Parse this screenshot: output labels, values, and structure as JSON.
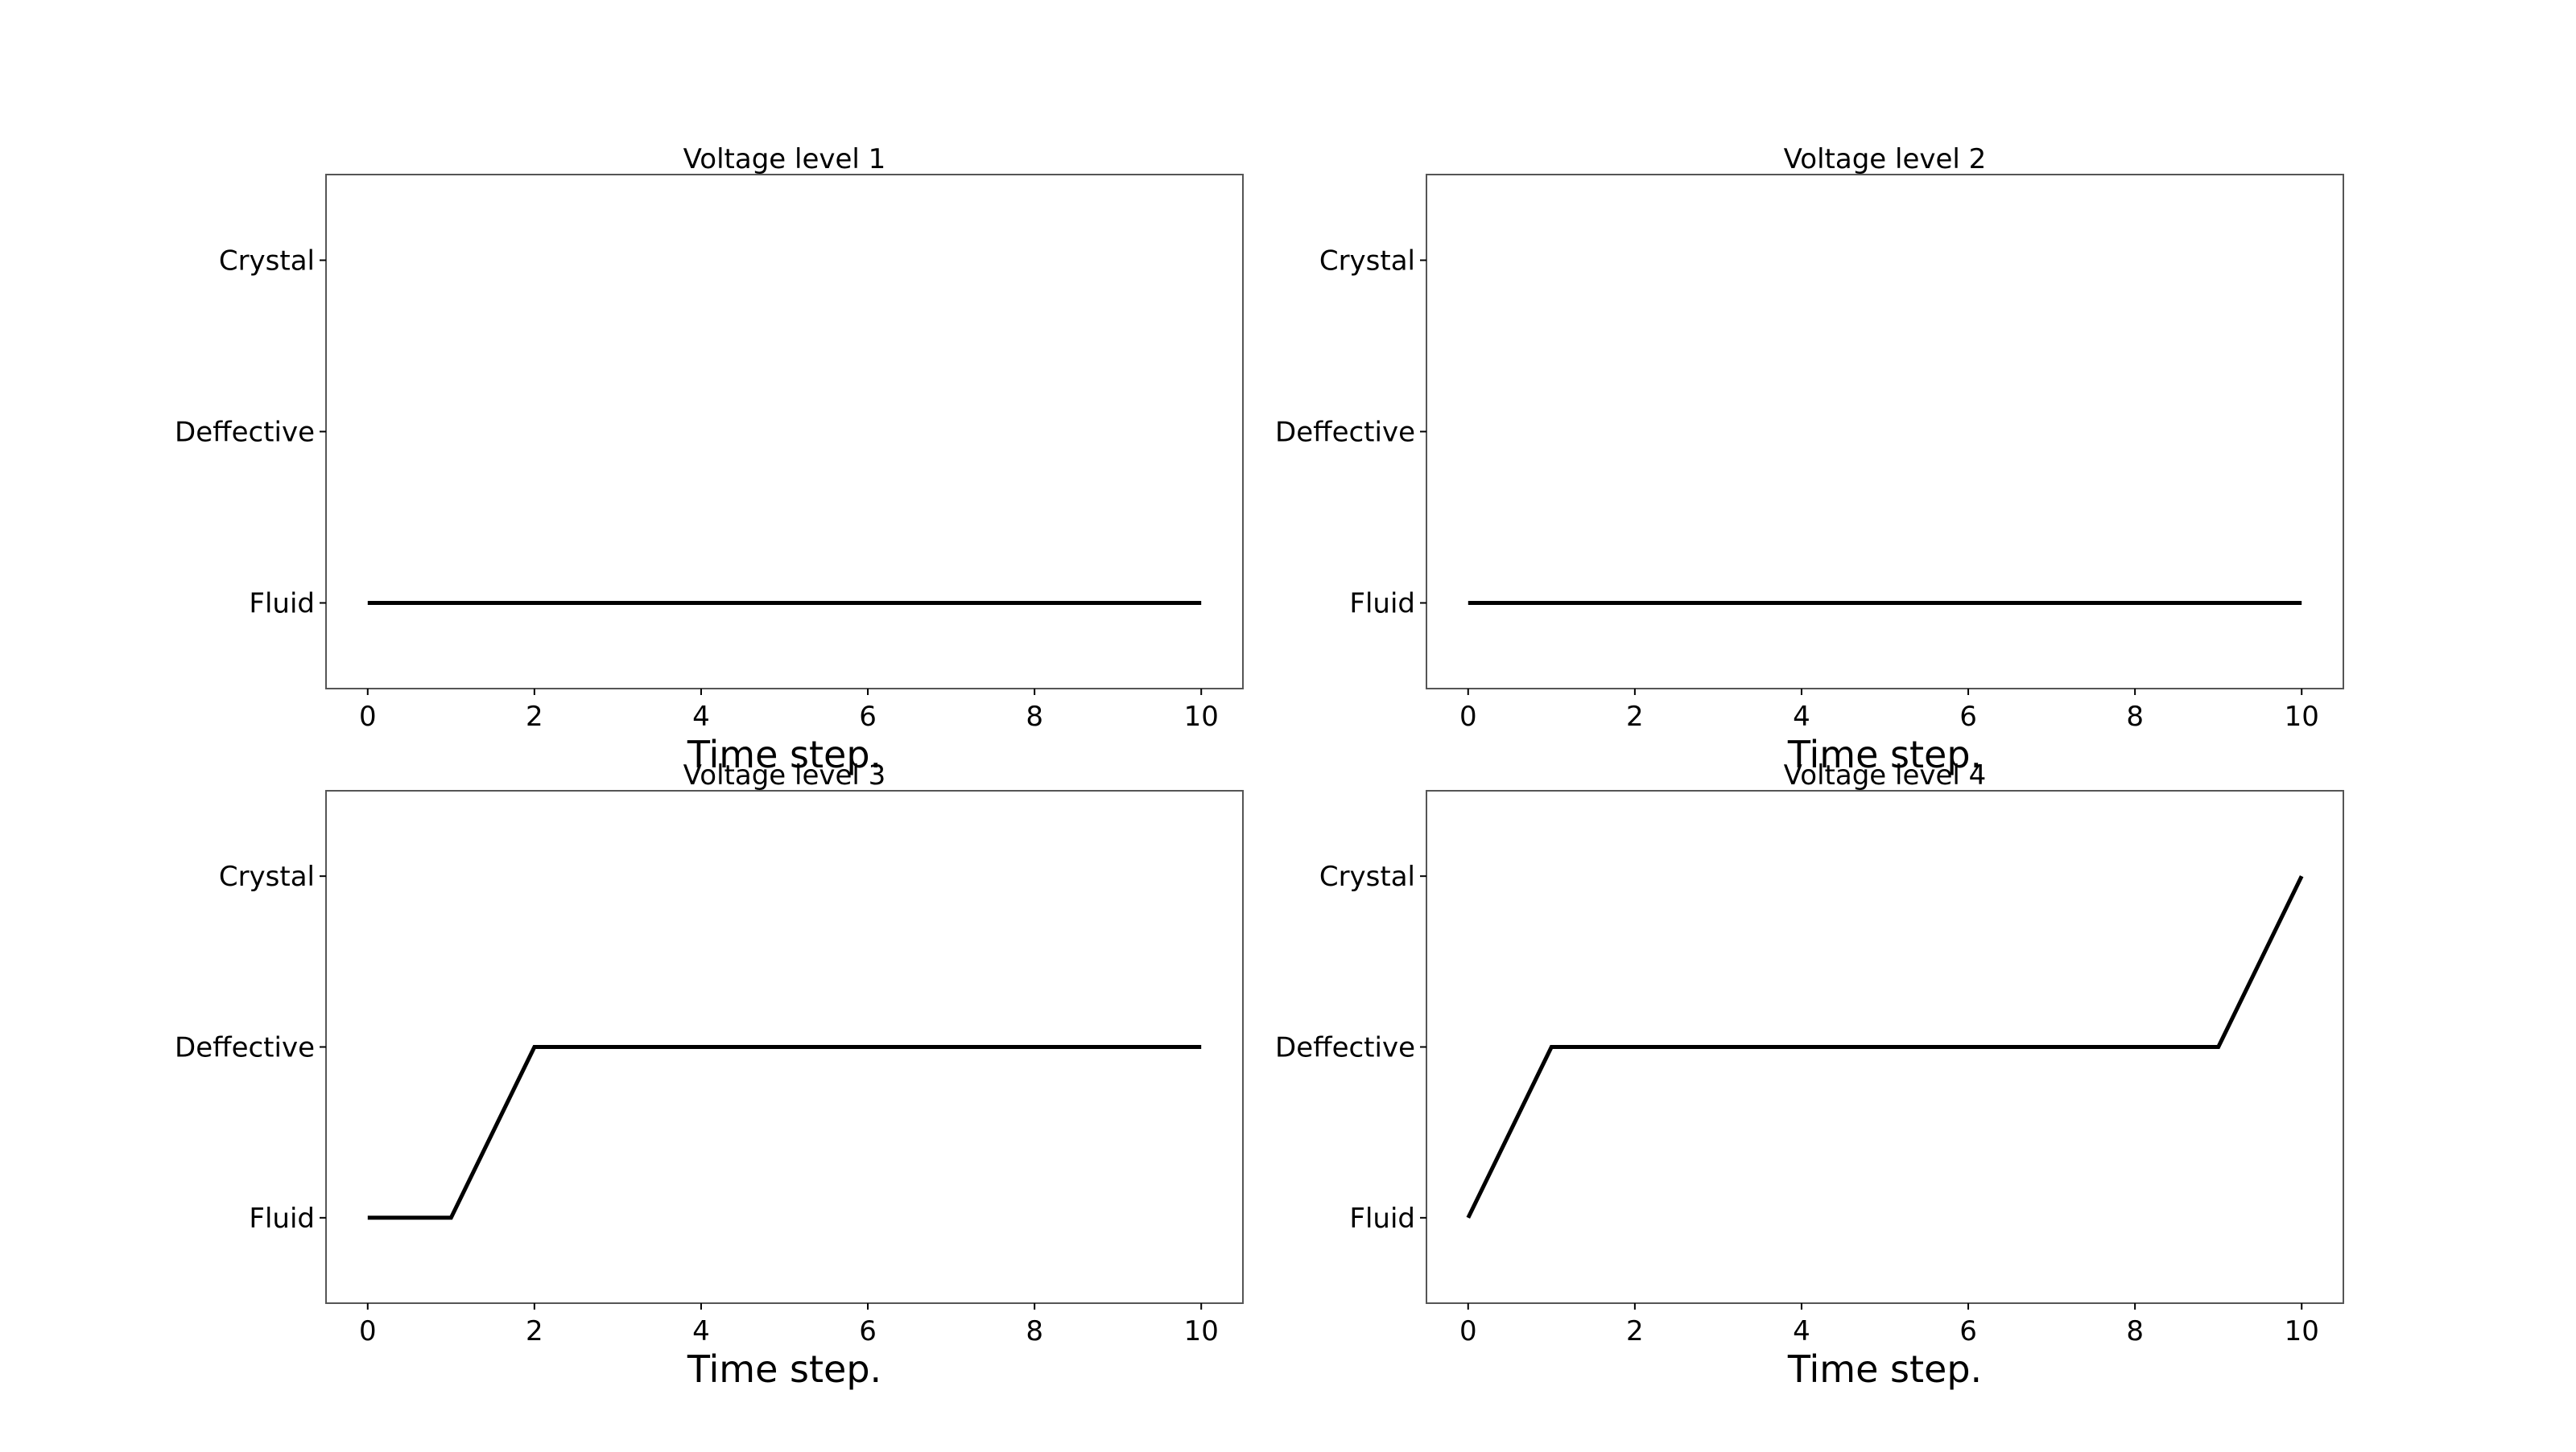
{
  "figure": {
    "background": "#ffffff",
    "line_color": "#000000",
    "frame_color": "#555555"
  },
  "chart_data": [
    {
      "type": "line",
      "title": "Voltage level 1",
      "xlabel": "Time step.",
      "ylabel": "",
      "x_ticks": [
        "0",
        "2",
        "4",
        "6",
        "8",
        "10"
      ],
      "y_ticks": [
        "Fluid",
        "Deffective",
        "Crystal"
      ],
      "xlim": [
        -0.5,
        10.5
      ],
      "ylim": [
        -0.5,
        2.5
      ],
      "grid": false,
      "series": [
        {
          "x": [
            0,
            1,
            2,
            3,
            4,
            5,
            6,
            7,
            8,
            9,
            10
          ],
          "y": [
            0,
            0,
            0,
            0,
            0,
            0,
            0,
            0,
            0,
            0,
            0
          ]
        }
      ]
    },
    {
      "type": "line",
      "title": "Voltage level 2",
      "xlabel": "Time step.",
      "ylabel": "",
      "x_ticks": [
        "0",
        "2",
        "4",
        "6",
        "8",
        "10"
      ],
      "y_ticks": [
        "Fluid",
        "Deffective",
        "Crystal"
      ],
      "xlim": [
        -0.5,
        10.5
      ],
      "ylim": [
        -0.5,
        2.5
      ],
      "grid": false,
      "series": [
        {
          "x": [
            0,
            1,
            2,
            3,
            4,
            5,
            6,
            7,
            8,
            9,
            10
          ],
          "y": [
            0,
            0,
            0,
            0,
            0,
            0,
            0,
            0,
            0,
            0,
            0
          ]
        }
      ]
    },
    {
      "type": "line",
      "title": "Voltage level 3",
      "xlabel": "Time step.",
      "ylabel": "",
      "x_ticks": [
        "0",
        "2",
        "4",
        "6",
        "8",
        "10"
      ],
      "y_ticks": [
        "Fluid",
        "Deffective",
        "Crystal"
      ],
      "xlim": [
        -0.5,
        10.5
      ],
      "ylim": [
        -0.5,
        2.5
      ],
      "grid": false,
      "series": [
        {
          "x": [
            0,
            1,
            2,
            3,
            4,
            5,
            6,
            7,
            8,
            9,
            10
          ],
          "y": [
            0,
            0,
            1,
            1,
            1,
            1,
            1,
            1,
            1,
            1,
            1
          ]
        }
      ]
    },
    {
      "type": "line",
      "title": "Voltage level 4",
      "xlabel": "Time step.",
      "ylabel": "",
      "x_ticks": [
        "0",
        "2",
        "4",
        "6",
        "8",
        "10"
      ],
      "y_ticks": [
        "Fluid",
        "Deffective",
        "Crystal"
      ],
      "xlim": [
        -0.5,
        10.5
      ],
      "ylim": [
        -0.5,
        2.5
      ],
      "grid": false,
      "series": [
        {
          "x": [
            0,
            1,
            2,
            3,
            4,
            5,
            6,
            7,
            8,
            9,
            10
          ],
          "y": [
            0,
            1,
            1,
            1,
            1,
            1,
            1,
            1,
            1,
            1,
            2
          ]
        }
      ]
    }
  ]
}
